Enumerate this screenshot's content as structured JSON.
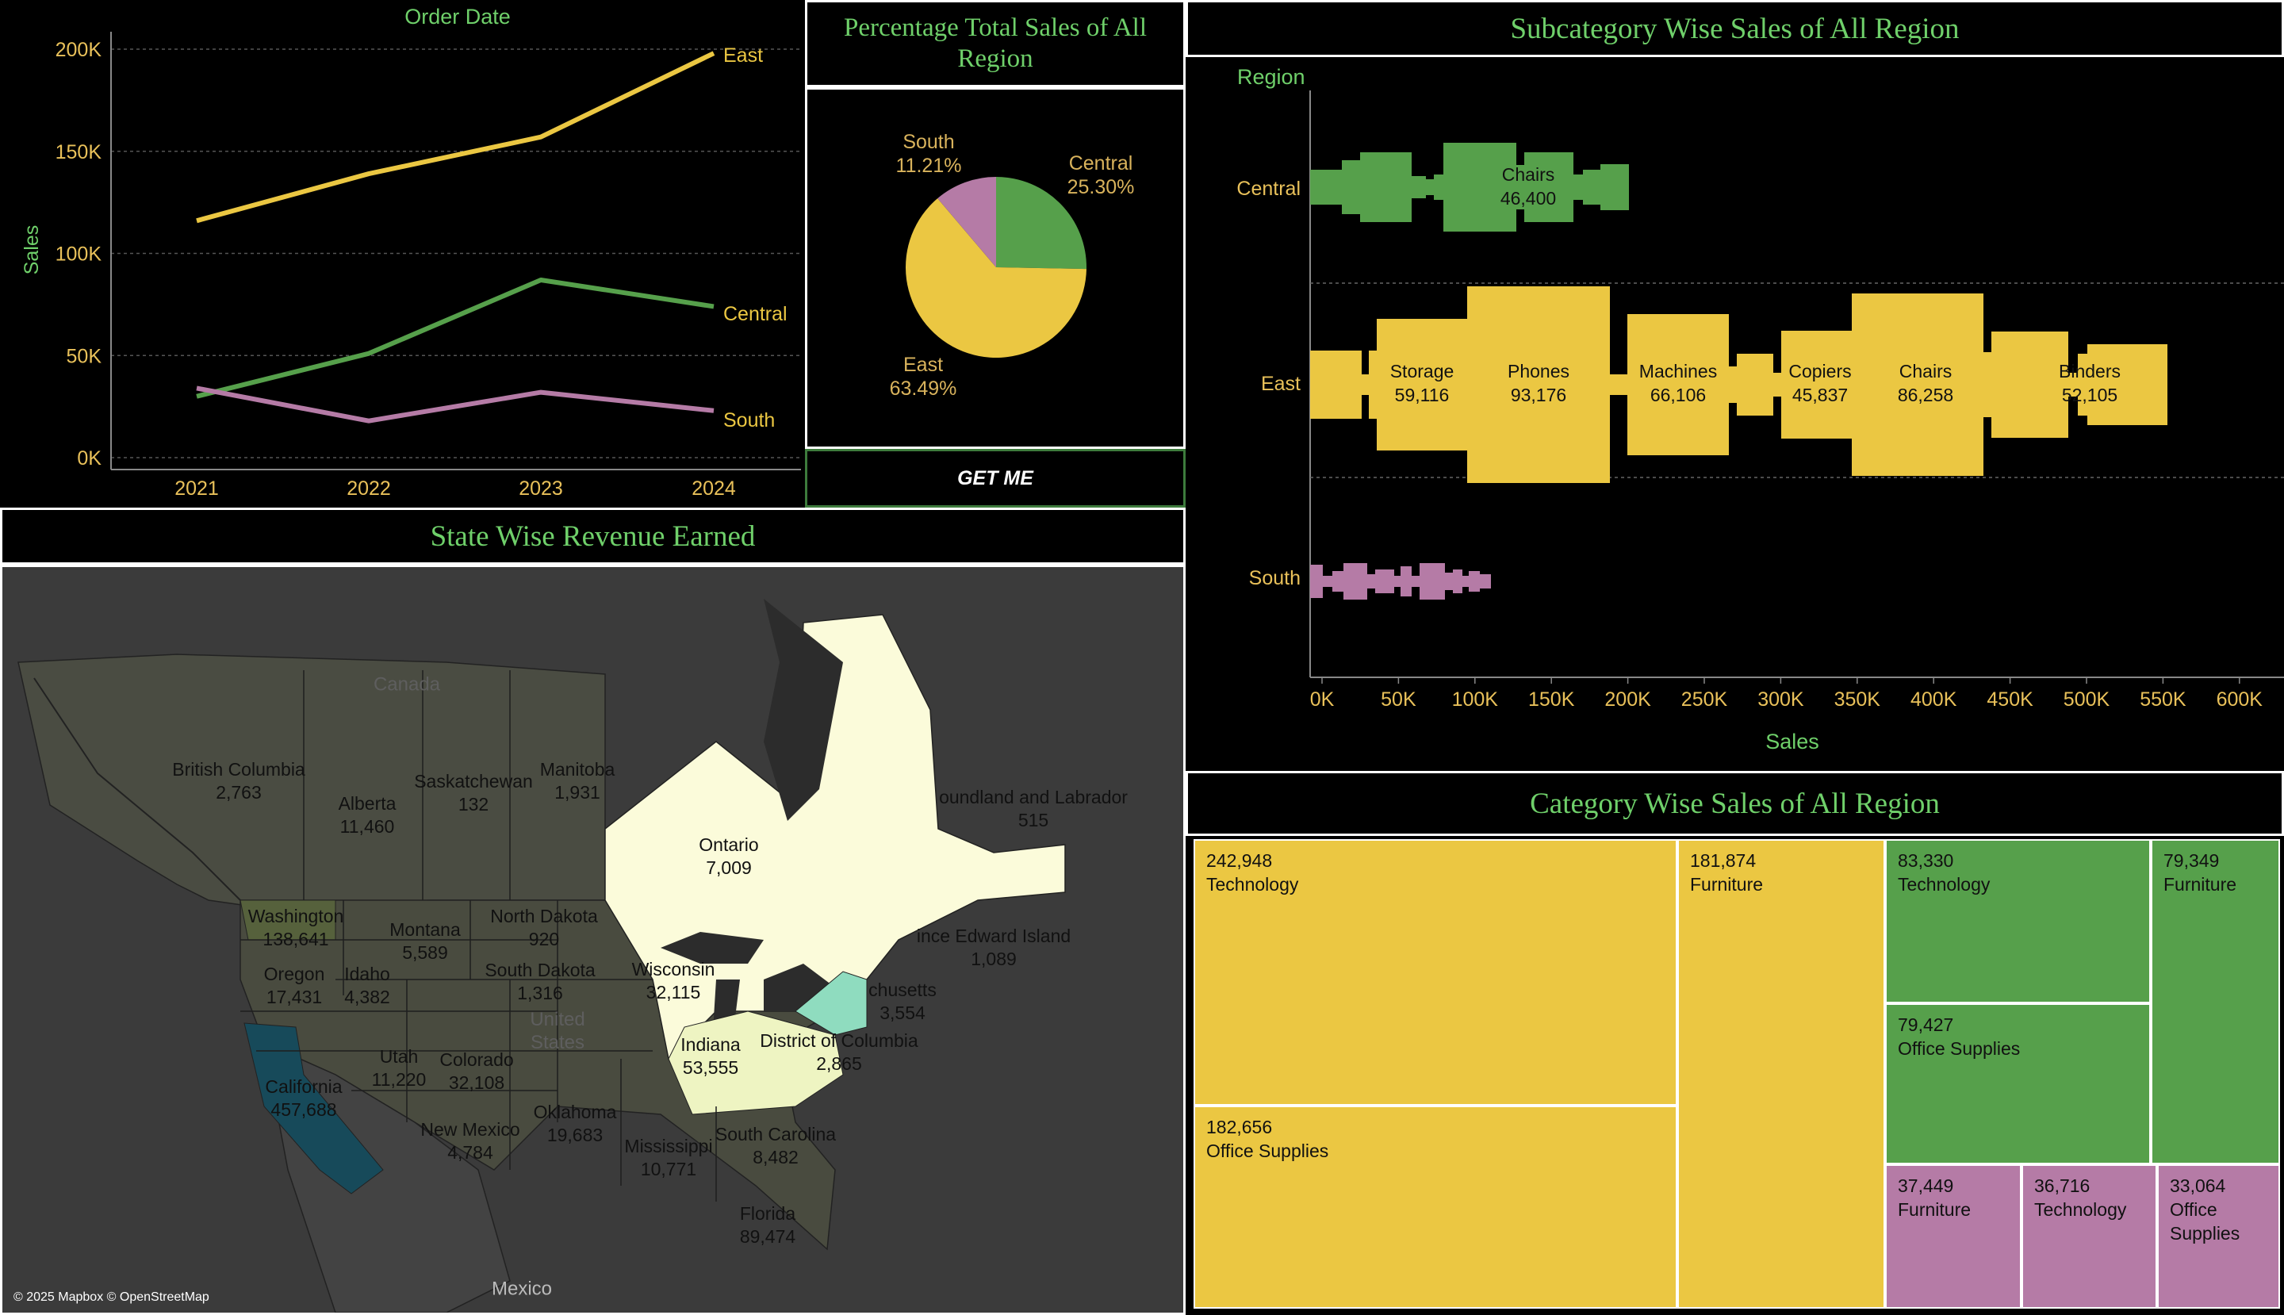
{
  "colors": {
    "central": "#56a04b",
    "east": "#ebc742",
    "south": "#b57ba6",
    "title": "#6fd06a",
    "axis_text": "#e9c15a",
    "label_text": "#d9b35c"
  },
  "line_chart": {
    "title": "Order Date",
    "ylabel": "Sales",
    "yticks": [
      "200K",
      "150K",
      "100K",
      "50K",
      "0K"
    ],
    "xticks": [
      "2021",
      "2022",
      "2023",
      "2024"
    ],
    "series_labels": {
      "east": "East",
      "central": "Central",
      "south": "South"
    }
  },
  "pie": {
    "title": "Percentage Total Sales of All Region",
    "south_name": "South",
    "south_pct": "11.21%",
    "central_name": "Central",
    "central_pct": "25.30%",
    "east_name": "East",
    "east_pct": "63.49%"
  },
  "get_me_button": "GET ME",
  "subcategory": {
    "title": "Subcategory Wise Sales of All Region",
    "region_header": "Region",
    "xlabel": "Sales",
    "rows": [
      "Central",
      "East",
      "South"
    ],
    "xticks": [
      "0K",
      "50K",
      "100K",
      "150K",
      "200K",
      "250K",
      "300K",
      "350K",
      "400K",
      "450K",
      "500K",
      "550K",
      "600K"
    ],
    "central_label": {
      "name": "Chairs",
      "value": "46,400"
    },
    "east_labels": [
      {
        "name": "Storage",
        "value": "59,116"
      },
      {
        "name": "Phones",
        "value": "93,176"
      },
      {
        "name": "Machines",
        "value": "66,106"
      },
      {
        "name": "Copiers",
        "value": "45,837"
      },
      {
        "name": "Chairs",
        "value": "86,258"
      },
      {
        "name": "Binders",
        "value": "52,105"
      }
    ]
  },
  "map": {
    "title": "State Wise Revenue Earned",
    "attribution": "© 2025 Mapbox © OpenStreetMap",
    "country_canada": "Canada",
    "country_us": "United States",
    "country_mexico": "Mexico",
    "labels": [
      {
        "name": "British Columbia",
        "value": "2,763"
      },
      {
        "name": "Alberta",
        "value": "11,460"
      },
      {
        "name": "Saskatchewan",
        "value": "132"
      },
      {
        "name": "Manitoba",
        "value": "1,931"
      },
      {
        "name": "Ontario",
        "value": "7,009"
      },
      {
        "name": "oundland and Labrador",
        "value": "515"
      },
      {
        "name": "Washington",
        "value": "138,641"
      },
      {
        "name": "Montana",
        "value": "5,589"
      },
      {
        "name": "North Dakota",
        "value": "920"
      },
      {
        "name": "South Dakota",
        "value": "1,316"
      },
      {
        "name": "Oregon",
        "value": "17,431"
      },
      {
        "name": "Idaho",
        "value": "4,382"
      },
      {
        "name": "Wisconsin",
        "value": "32,115"
      },
      {
        "name": "ince Edward Island",
        "value": "1,089"
      },
      {
        "name": "chusetts",
        "value": "3,554"
      },
      {
        "name": "Indiana",
        "value": "53,555"
      },
      {
        "name": "District of Columbia",
        "value": "2,865"
      },
      {
        "name": "Utah",
        "value": "11,220"
      },
      {
        "name": "Colorado",
        "value": "32,108"
      },
      {
        "name": "California",
        "value": "457,688"
      },
      {
        "name": "Oklahoma",
        "value": "19,683"
      },
      {
        "name": "New Mexico",
        "value": "4,784"
      },
      {
        "name": "Mississippi",
        "value": "10,771"
      },
      {
        "name": "South Carolina",
        "value": "8,482"
      },
      {
        "name": "Florida",
        "value": "89,474"
      }
    ]
  },
  "treemap": {
    "title": "Category Wise Sales of All Region",
    "cells": [
      {
        "value": "242,948",
        "label": "Technology"
      },
      {
        "value": "181,874",
        "label": "Furniture"
      },
      {
        "value": "182,656",
        "label": "Office Supplies"
      },
      {
        "value": "83,330",
        "label": "Technology"
      },
      {
        "value": "79,349",
        "label": "Furniture"
      },
      {
        "value": "79,427",
        "label": "Office Supplies"
      },
      {
        "value": "37,449",
        "label": "Furniture"
      },
      {
        "value": "36,716",
        "label": "Technology"
      },
      {
        "value": "33,064",
        "label": "Office Supplies"
      }
    ]
  },
  "chart_data": [
    {
      "type": "line",
      "title": "Order Date",
      "xlabel": "",
      "ylabel": "Sales",
      "x": [
        "2021",
        "2022",
        "2023",
        "2024"
      ],
      "ylim": [
        0,
        200000
      ],
      "series": [
        {
          "name": "East",
          "values": [
            116000,
            139000,
            157000,
            198000
          ]
        },
        {
          "name": "Central",
          "values": [
            30000,
            51000,
            87000,
            74000
          ]
        },
        {
          "name": "South",
          "values": [
            34000,
            18000,
            32000,
            23000
          ]
        }
      ]
    },
    {
      "type": "pie",
      "title": "Percentage Total Sales of All Region",
      "categories": [
        "Central",
        "East",
        "South"
      ],
      "values": [
        25.3,
        63.49,
        11.21
      ]
    },
    {
      "type": "bar",
      "title": "Subcategory Wise Sales of All Region",
      "xlabel": "Sales",
      "ylabel": "Region",
      "xlim": [
        0,
        600000
      ],
      "series": [
        {
          "name": "Central",
          "values": [
            46400
          ]
        },
        {
          "name": "East",
          "values": [
            59116,
            93176,
            66106,
            45837,
            86258,
            52105
          ]
        }
      ]
    },
    {
      "type": "table",
      "title": "Category Wise Sales of All Region",
      "categories": [
        "Technology",
        "Furniture",
        "Office Supplies"
      ],
      "series": [
        {
          "name": "East",
          "values": [
            242948,
            181874,
            182656
          ]
        },
        {
          "name": "Central",
          "values": [
            83330,
            79349,
            79427
          ]
        },
        {
          "name": "South",
          "values": [
            36716,
            37449,
            33064
          ]
        }
      ]
    }
  ]
}
